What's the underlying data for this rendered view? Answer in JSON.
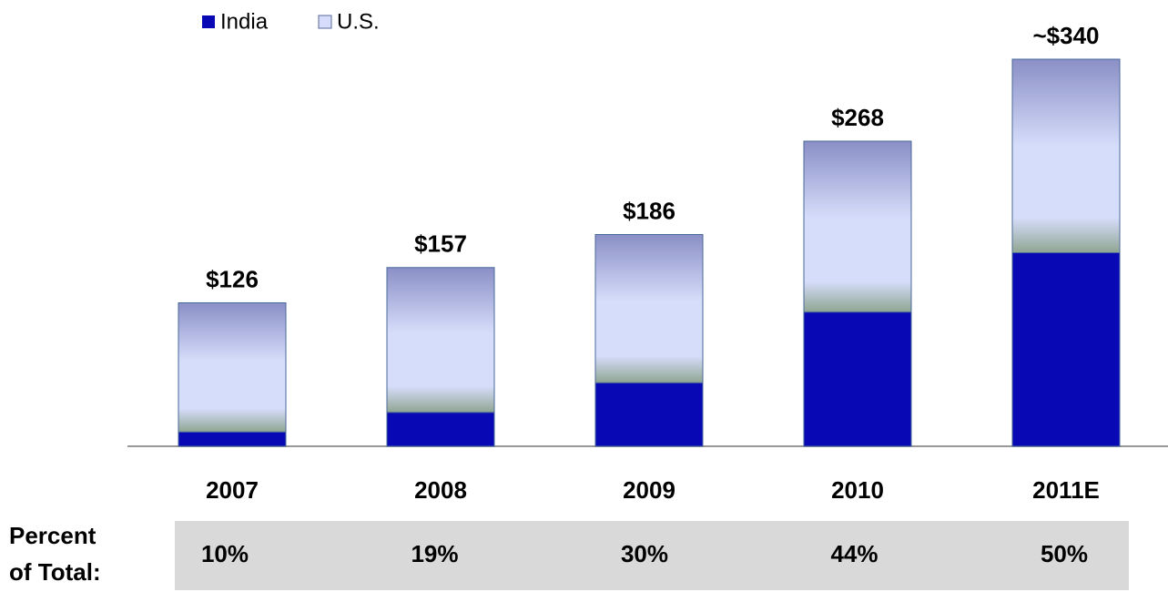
{
  "chart_data": {
    "type": "stacked_bar",
    "categories": [
      "2007",
      "2008",
      "2009",
      "2010",
      "2011E"
    ],
    "series": [
      {
        "name": "India",
        "color": "#0808b4",
        "values": [
          12.6,
          29.8,
          55.8,
          117.9,
          170
        ]
      },
      {
        "name": "U.S.",
        "color": "#d6ddfa",
        "values": [
          113.4,
          127.2,
          130.2,
          150.1,
          170
        ]
      }
    ],
    "totals": [
      126,
      157,
      186,
      268,
      340
    ],
    "total_labels": [
      "$126",
      "$157",
      "$186",
      "$268",
      "~$340"
    ],
    "ylim": [
      0,
      340
    ],
    "percent_row": {
      "label": [
        "Percent",
        "of Total:"
      ],
      "values": [
        "10%",
        "19%",
        "30%",
        "44%",
        "50%"
      ]
    }
  }
}
